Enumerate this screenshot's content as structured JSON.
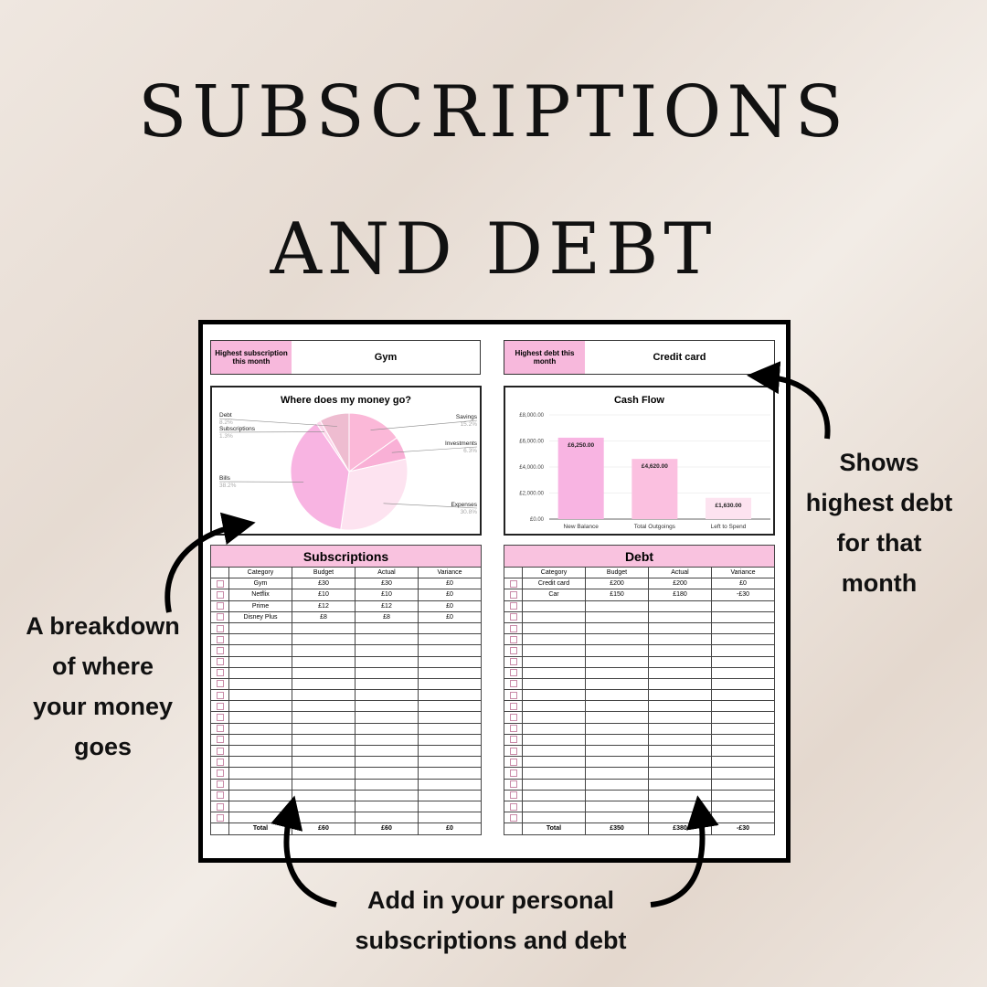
{
  "title": {
    "line1": "SUBSCRIPTIONS",
    "line2": "AND DEBT"
  },
  "cards": {
    "sub_label": "Highest subscription this month",
    "sub_value": "Gym",
    "debt_label": "Highest debt this month",
    "debt_value": "Credit card"
  },
  "chart_data": [
    {
      "type": "pie",
      "title": "Where does my money go?",
      "slices": [
        {
          "label": "Savings",
          "value": 15.2,
          "pct": "15.2%",
          "color": "#fbb8d8"
        },
        {
          "label": "Investments",
          "value": 6.3,
          "pct": "6.3%",
          "color": "#f9b0d6"
        },
        {
          "label": "Expenses",
          "value": 30.8,
          "pct": "30.8%",
          "color": "#fde3f0"
        },
        {
          "label": "Bills",
          "value": 38.2,
          "pct": "38.2%",
          "color": "#f8b4e2"
        },
        {
          "label": "Subscriptions",
          "value": 1.3,
          "pct": "1.3%",
          "color": "#fcd6ea"
        },
        {
          "label": "Debt",
          "value": 8.2,
          "pct": "8.2%",
          "color": "#eebcd0"
        }
      ]
    },
    {
      "type": "bar",
      "title": "Cash Flow",
      "categories": [
        "New Balance",
        "Total Outgoings",
        "Left to Spend"
      ],
      "values": [
        6250,
        4620,
        1630
      ],
      "labels": [
        "£6,250.00",
        "£4,620.00",
        "£1,630.00"
      ],
      "colors": [
        "#f8b4e2",
        "#fbc0e0",
        "#fde3f0"
      ],
      "ylim": [
        0,
        8000
      ],
      "ticks": [
        "£0.00",
        "£2,000.00",
        "£4,000.00",
        "£6,000.00",
        "£8,000.00"
      ],
      "grid": true
    }
  ],
  "subscriptions": {
    "title": "Subscriptions",
    "columns": [
      "Category",
      "Budget",
      "Actual",
      "Variance"
    ],
    "rows": [
      [
        "Gym",
        "£30",
        "£30",
        "£0"
      ],
      [
        "Netflix",
        "£10",
        "£10",
        "£0"
      ],
      [
        "Prime",
        "£12",
        "£12",
        "£0"
      ],
      [
        "Disney Plus",
        "£8",
        "£8",
        "£0"
      ]
    ],
    "total": [
      "Total",
      "£60",
      "£60",
      "£0"
    ]
  },
  "debt": {
    "title": "Debt",
    "columns": [
      "Category",
      "Budget",
      "Actual",
      "Variance"
    ],
    "rows": [
      [
        "Credit card",
        "£200",
        "£200",
        "£0"
      ],
      [
        "Car",
        "£150",
        "£180",
        "-£30"
      ]
    ],
    "total": [
      "Total",
      "£350",
      "£380",
      "-£30"
    ]
  },
  "annotations": {
    "right": [
      "Shows",
      "highest debt",
      "for that",
      "month"
    ],
    "left": [
      "A breakdown",
      "of where",
      "your money",
      "goes"
    ],
    "bottom": [
      "Add in your personal",
      "subscriptions and debt"
    ]
  }
}
